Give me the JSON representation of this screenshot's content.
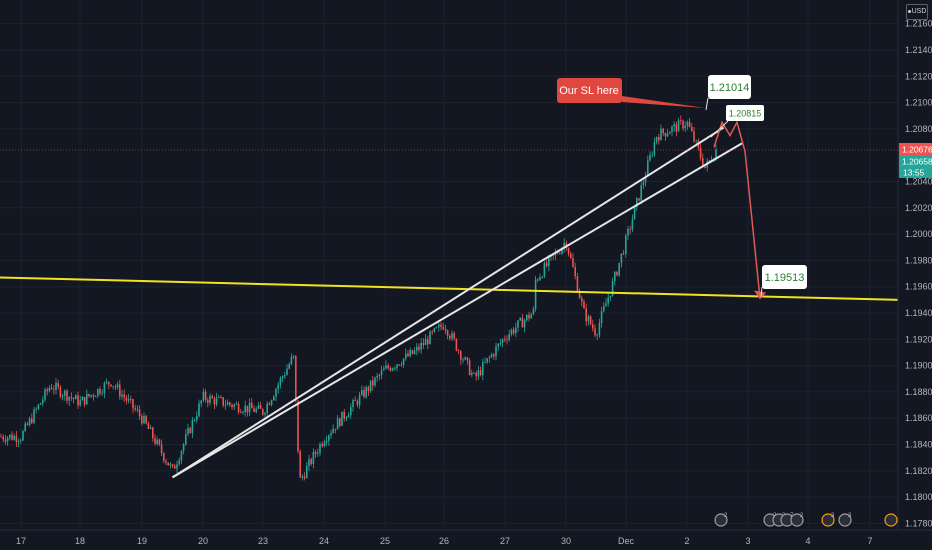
{
  "chart_data": {
    "type": "candlestick",
    "title": "",
    "currency": "USD",
    "y_axis": {
      "ticks": [
        "1.21600",
        "1.21400",
        "1.21200",
        "1.21000",
        "1.20800",
        "1.20400",
        "1.20200",
        "1.20000",
        "1.19800",
        "1.19600",
        "1.19400",
        "1.19200",
        "1.19000",
        "1.18800",
        "1.18600",
        "1.18400",
        "1.18200",
        "1.18000",
        "1.17800"
      ],
      "ylim": [
        1.1775,
        1.2178
      ]
    },
    "x_axis": {
      "ticks": [
        "17",
        "18",
        "19",
        "20",
        "23",
        "24",
        "25",
        "26",
        "27",
        "30",
        "Dec",
        "2",
        "3",
        "4",
        "7"
      ]
    },
    "price_path": [
      {
        "x": "17",
        "y": 1.1846
      },
      {
        "x": "17.5",
        "y": 1.1885
      },
      {
        "x": "18",
        "y": 1.1872
      },
      {
        "x": "18.5",
        "y": 1.1888
      },
      {
        "x": "19",
        "y": 1.186
      },
      {
        "x": "19.5",
        "y": 1.182
      },
      {
        "x": "20",
        "y": 1.1876
      },
      {
        "x": "20.5",
        "y": 1.187
      },
      {
        "x": "23",
        "y": 1.1865
      },
      {
        "x": "23.5",
        "y": 1.1907
      },
      {
        "x": "23.6",
        "y": 1.1812
      },
      {
        "x": "24",
        "y": 1.1845
      },
      {
        "x": "25",
        "y": 1.1897
      },
      {
        "x": "25.5",
        "y": 1.191
      },
      {
        "x": "26",
        "y": 1.1932
      },
      {
        "x": "26.5",
        "y": 1.189
      },
      {
        "x": "27",
        "y": 1.1922
      },
      {
        "x": "27.5",
        "y": 1.1942
      },
      {
        "x": "28",
        "y": 1.1965
      },
      {
        "x": "30",
        "y": 1.1995
      },
      {
        "x": "30.3",
        "y": 1.194
      },
      {
        "x": "30.5",
        "y": 1.1925
      },
      {
        "x": "30.8",
        "y": 1.1965
      },
      {
        "x": "Dec",
        "y": 1.1995
      },
      {
        "x": "1.5",
        "y": 1.2075
      },
      {
        "x": "2",
        "y": 1.2085
      },
      {
        "x": "2.3",
        "y": 1.205
      },
      {
        "x": "2.5",
        "y": 1.2066
      }
    ],
    "last_price": "1.20676",
    "bid_price": "1.20658",
    "countdown": "13:55",
    "support_line": {
      "label": "",
      "color": "#ffeb3b",
      "y_start": 1.1967,
      "y_end": 1.195
    },
    "trendlines": [
      {
        "from": {
          "x": "19.5",
          "y": 1.1815
        },
        "to": {
          "x": "2.6",
          "y": 1.2081
        }
      },
      {
        "from": {
          "x": "19.5",
          "y": 1.1815
        },
        "to": {
          "x": "2.9",
          "y": 1.2069
        }
      }
    ],
    "projection_path": [
      1.2066,
      1.2085,
      1.2075,
      1.2085,
      1.2063,
      1.1951
    ],
    "annotations": [
      {
        "text": "Our SL here",
        "style": "red-callout"
      },
      {
        "text": "1.21014",
        "style": "green-label"
      },
      {
        "text": "1.20815",
        "style": "green-label-small"
      },
      {
        "text": "1.19513",
        "style": "green-label"
      }
    ],
    "event_badges": [
      "2",
      "2",
      "2",
      "7",
      "2",
      "3",
      "3"
    ],
    "colors": {
      "background": "#131722",
      "up": "#26a69a",
      "down": "#ef5350",
      "grid": "#1e222d",
      "projection": "#e05a52",
      "trendline": "#dcdcdc"
    }
  }
}
